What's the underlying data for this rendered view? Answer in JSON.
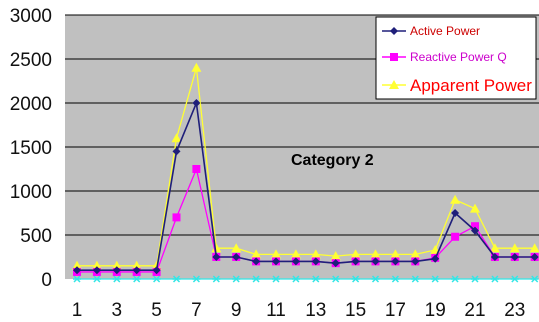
{
  "colors": {
    "plot_background": "#c0c0c0",
    "grid": "#000000",
    "active": "#1f1f7a",
    "reactive": "#ff00ff",
    "apparent": "#ffff33",
    "baseline": "#33e6e6",
    "apparent_legend_text": "#ff0000",
    "legend_border": "#000000"
  },
  "chart_data": {
    "type": "line",
    "title": "",
    "xlabel": "",
    "ylabel": "",
    "x": [
      1,
      2,
      3,
      4,
      5,
      6,
      7,
      8,
      9,
      10,
      11,
      12,
      13,
      14,
      15,
      16,
      17,
      18,
      19,
      20,
      21,
      22,
      23,
      24
    ],
    "x_tick_labels": [
      "1",
      "3",
      "5",
      "7",
      "9",
      "11",
      "13",
      "15",
      "17",
      "19",
      "21",
      "23"
    ],
    "ylim": [
      0,
      3000
    ],
    "y_ticks": [
      0,
      500,
      1000,
      1500,
      2000,
      2500,
      3000
    ],
    "y_tick_labels": [
      "0",
      "500",
      "1000",
      "1500",
      "2000",
      "2500",
      "3000"
    ],
    "grid": "horizontal",
    "legend_position": "top-right",
    "annotation": "Category 2",
    "series": [
      {
        "name": "Active Power",
        "color_key": "active",
        "marker": "diamond",
        "values": [
          100,
          100,
          100,
          100,
          100,
          1450,
          2000,
          250,
          250,
          200,
          200,
          200,
          200,
          180,
          200,
          200,
          200,
          200,
          230,
          750,
          550,
          250,
          250,
          250
        ]
      },
      {
        "name": "Reactive Power Q",
        "color_key": "reactive",
        "marker": "square",
        "values": [
          80,
          80,
          80,
          80,
          80,
          700,
          1250,
          250,
          250,
          200,
          200,
          200,
          200,
          180,
          200,
          200,
          200,
          200,
          240,
          480,
          600,
          250,
          250,
          250
        ]
      },
      {
        "name": "Apparent Power",
        "color_key": "apparent",
        "marker": "triangle",
        "values": [
          150,
          150,
          150,
          150,
          150,
          1600,
          2400,
          350,
          350,
          280,
          280,
          280,
          280,
          260,
          280,
          280,
          280,
          280,
          330,
          900,
          800,
          350,
          350,
          350
        ]
      },
      {
        "color_key": "baseline",
        "marker": "asterisk",
        "values": [
          0,
          0,
          0,
          0,
          0,
          0,
          0,
          0,
          0,
          0,
          0,
          0,
          0,
          0,
          0,
          0,
          0,
          0,
          0,
          0,
          0,
          0,
          0,
          0
        ]
      }
    ]
  }
}
